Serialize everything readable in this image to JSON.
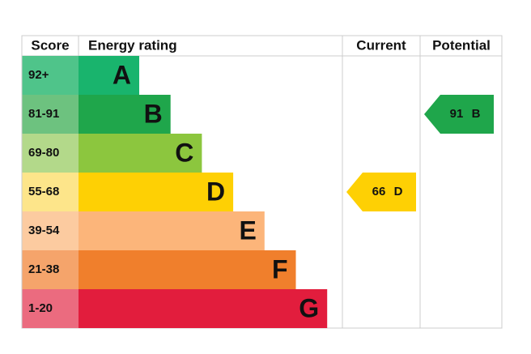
{
  "header": {
    "score": "Score",
    "rating": "Energy rating",
    "current": "Current",
    "potential": "Potential"
  },
  "rows": [
    {
      "score": "92+",
      "letter": "A",
      "bar_color": "#19b46d",
      "cell_color": "#4fc48a"
    },
    {
      "score": "81-91",
      "letter": "B",
      "bar_color": "#1fa64b",
      "cell_color": "#6dc27f"
    },
    {
      "score": "69-80",
      "letter": "C",
      "bar_color": "#8cc63e",
      "cell_color": "#b3d98a"
    },
    {
      "score": "55-68",
      "letter": "D",
      "bar_color": "#fed004",
      "cell_color": "#fde58a"
    },
    {
      "score": "39-54",
      "letter": "E",
      "bar_color": "#fcb57a",
      "cell_color": "#fccba0"
    },
    {
      "score": "21-38",
      "letter": "F",
      "bar_color": "#f07f2c",
      "cell_color": "#f5a46b"
    },
    {
      "score": "1-20",
      "letter": "G",
      "bar_color": "#e21d3d",
      "cell_color": "#eb6b7f"
    }
  ],
  "current": {
    "value": "66",
    "rating": "D"
  },
  "potential": {
    "value": "91",
    "rating": "B"
  }
}
